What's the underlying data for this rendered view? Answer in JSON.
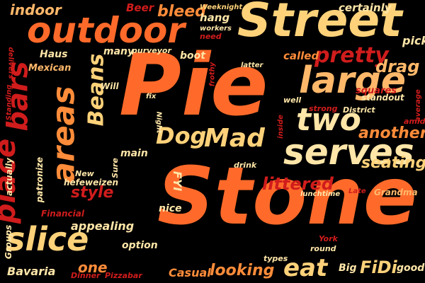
{
  "words": [
    {
      "text": "Stone",
      "color": "#ff6a2a"
    },
    {
      "text": "Pie",
      "color": "#ff6a2a"
    },
    {
      "text": "Street",
      "color": "#ffd27a"
    },
    {
      "text": "outdoor",
      "color": "#ff6a2a"
    },
    {
      "text": "large",
      "color": "#ffb86a"
    },
    {
      "text": "serves",
      "color": "#ffe6a8"
    },
    {
      "text": "two",
      "color": "#ffe6a8"
    },
    {
      "text": "slice",
      "color": "#ffd27a"
    },
    {
      "text": "areas",
      "color": "#ff8c3a"
    },
    {
      "text": "place",
      "color": "#d01c1c"
    },
    {
      "text": "bars",
      "color": "#d01c1c"
    },
    {
      "text": "Beans",
      "color": "#ffd27a"
    },
    {
      "text": "Mad",
      "color": "#ffd27a"
    },
    {
      "text": "Dog",
      "color": "#ffd27a"
    },
    {
      "text": "pretty",
      "color": "#d01c1c"
    },
    {
      "text": "drag",
      "color": "#ffb86a"
    },
    {
      "text": "another",
      "color": "#ff8c3a"
    },
    {
      "text": "littered",
      "color": "#d01c1c"
    },
    {
      "text": "seating",
      "color": "#ffd27a"
    },
    {
      "text": "style",
      "color": "#d01c1c"
    },
    {
      "text": "eat",
      "color": "#ffd27a"
    },
    {
      "text": "looking",
      "color": "#ff8c3a"
    },
    {
      "text": "FiDi",
      "color": "#ffd27a"
    },
    {
      "text": "indoor",
      "color": "#ffb86a"
    },
    {
      "text": "bleed",
      "color": "#ff8c3a"
    },
    {
      "text": "Beer",
      "color": "#d01c1c"
    },
    {
      "text": "Weeknight",
      "color": "#ffd27a"
    },
    {
      "text": "hang",
      "color": "#ffe6a8"
    },
    {
      "text": "workers",
      "color": "#ffe6a8"
    },
    {
      "text": "need",
      "color": "#d01c1c"
    },
    {
      "text": "certainly",
      "color": "#ffe6a8"
    },
    {
      "text": "pick",
      "color": "#ffe6a8"
    },
    {
      "text": "Haus",
      "color": "#ffe6a8"
    },
    {
      "text": "many",
      "color": "#ffe6a8"
    },
    {
      "text": "purveyor",
      "color": "#ffe6a8"
    },
    {
      "text": "boot",
      "color": "#ffe6a8"
    },
    {
      "text": "latter",
      "color": "#ffe6a8"
    },
    {
      "text": "called",
      "color": "#ff8c3a"
    },
    {
      "text": "Mexican",
      "color": "#ffb86a"
    },
    {
      "text": "Will",
      "color": "#ffe6a8"
    },
    {
      "text": "frothy",
      "color": "#d01c1c"
    },
    {
      "text": "fix",
      "color": "#ffe6a8"
    },
    {
      "text": "squares",
      "color": "#d01c1c"
    },
    {
      "text": "standout",
      "color": "#ffe6a8"
    },
    {
      "text": "well",
      "color": "#ffe6a8"
    },
    {
      "text": "strong",
      "color": "#d01c1c"
    },
    {
      "text": "District",
      "color": "#ffe6a8"
    },
    {
      "text": "average",
      "color": "#d01c1c"
    },
    {
      "text": "amid",
      "color": "#d01c1c"
    },
    {
      "text": "Night",
      "color": "#ffe6a8"
    },
    {
      "text": "Sure",
      "color": "#ffe6a8"
    },
    {
      "text": "main",
      "color": "#ffe6a8"
    },
    {
      "text": "inside",
      "color": "#d01c1c"
    },
    {
      "text": "drink",
      "color": "#ffe6a8"
    },
    {
      "text": "New",
      "color": "#ffe6a8"
    },
    {
      "text": "patronize",
      "color": "#ffe6a8"
    },
    {
      "text": "hefeweizen",
      "color": "#ffe6a8"
    },
    {
      "text": "FYI",
      "color": "#ffe6a8"
    },
    {
      "text": "nice",
      "color": "#ffe6a8"
    },
    {
      "text": "lunchtime",
      "color": "#ffe6a8"
    },
    {
      "text": "Late",
      "color": "#d01c1c"
    },
    {
      "text": "Grandma",
      "color": "#ffb86a"
    },
    {
      "text": "Financial",
      "color": "#d01c1c"
    },
    {
      "text": "appealing",
      "color": "#ffe6a8"
    },
    {
      "text": "option",
      "color": "#ffe6a8"
    },
    {
      "text": "York",
      "color": "#d01c1c"
    },
    {
      "text": "round",
      "color": "#ffe6a8"
    },
    {
      "text": "types",
      "color": "#ffe6a8"
    },
    {
      "text": "Casual",
      "color": "#ff8c3a"
    },
    {
      "text": "Big",
      "color": "#ffe6a8"
    },
    {
      "text": "good",
      "color": "#ffe6a8"
    },
    {
      "text": "one",
      "color": "#ff8c3a"
    },
    {
      "text": "Dinner",
      "color": "#d01c1c"
    },
    {
      "text": "Pizzabar",
      "color": "#d01c1c"
    },
    {
      "text": "Bavaria",
      "color": "#ffe6a8"
    },
    {
      "text": "Groups",
      "color": "#ffe6a8"
    },
    {
      "text": "actually",
      "color": "#ffe6a8"
    },
    {
      "text": "Standing",
      "color": "#d01c1c"
    },
    {
      "text": "delivers",
      "color": "#d01c1c"
    }
  ]
}
